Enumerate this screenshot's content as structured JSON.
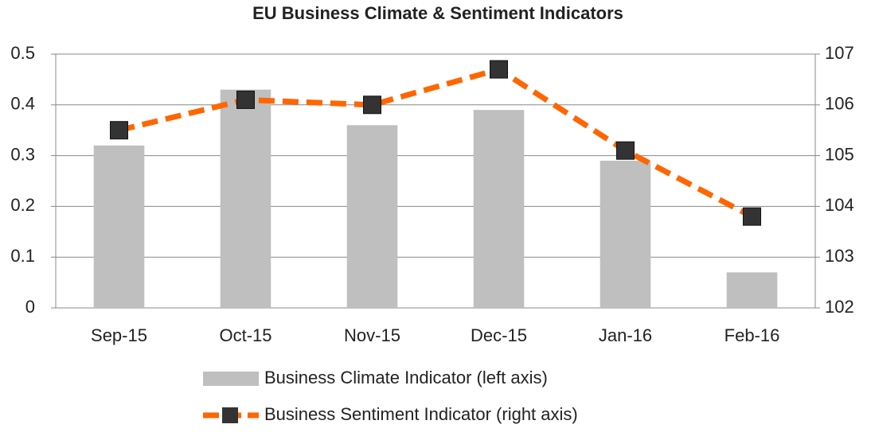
{
  "chart_data": {
    "type": "bar",
    "title": "EU Business Climate & Sentiment Indicators",
    "categories": [
      "Sep-15",
      "Oct-15",
      "Nov-15",
      "Dec-15",
      "Jan-16",
      "Feb-16"
    ],
    "series": [
      {
        "name": "Business Climate Indicator (left axis)",
        "type": "bar",
        "color": "#bfbfbf",
        "values": [
          0.32,
          0.43,
          0.36,
          0.39,
          0.29,
          0.07
        ]
      },
      {
        "name": "Business Sentiment Indicator (right axis)",
        "type": "line",
        "axis": "y2",
        "color": "#ff6600",
        "marker_color": "#333333",
        "values": [
          105.5,
          106.1,
          106.0,
          106.7,
          105.1,
          103.8
        ]
      }
    ],
    "ylim": [
      0,
      0.5
    ],
    "yticks": [
      0,
      0.1,
      0.2,
      0.3,
      0.4,
      0.5
    ],
    "y2lim": [
      102,
      107
    ],
    "y2ticks": [
      102,
      103,
      104,
      105,
      106,
      107
    ],
    "grid": true,
    "legend": "bottom"
  }
}
